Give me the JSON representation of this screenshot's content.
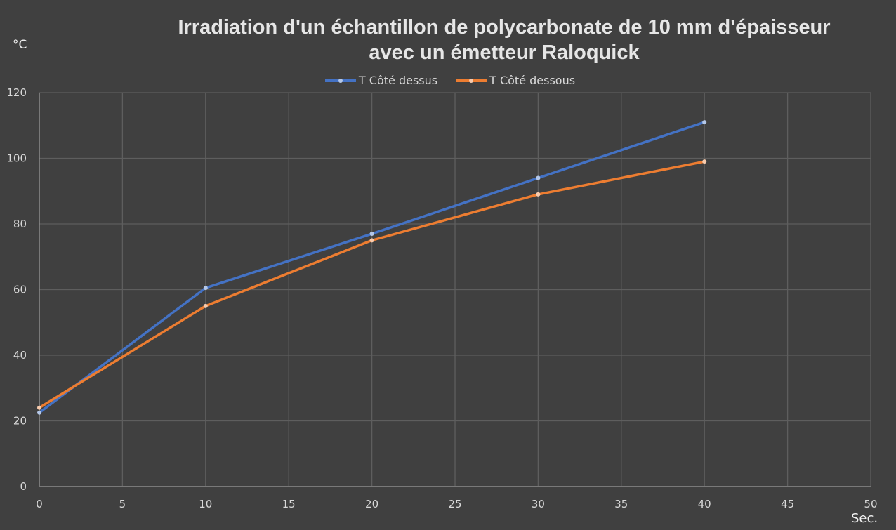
{
  "chart_data": {
    "type": "line",
    "title_lines": [
      "Irradiation d'un échantillon de polycarbonate de 10 mm d'épaisseur",
      "avec un émetteur Raloquick"
    ],
    "ylabel": "°C",
    "xlabel": "Sec.",
    "xlim": [
      0,
      50
    ],
    "ylim": [
      0,
      120
    ],
    "x_ticks": [
      "0",
      "5",
      "10",
      "15",
      "20",
      "25",
      "30",
      "35",
      "40",
      "45",
      "50"
    ],
    "y_ticks": [
      "0",
      "20",
      "40",
      "60",
      "80",
      "100",
      "120"
    ],
    "grid": true,
    "legend_position": "top-center",
    "x": [
      0,
      10,
      20,
      30,
      40
    ],
    "series": [
      {
        "name": "T Côté dessus",
        "color": "#4472c4",
        "marker_color": "#b4c7e7",
        "values": [
          22.5,
          60.5,
          77,
          94,
          111
        ]
      },
      {
        "name": "T Côté dessous",
        "color": "#ed7d31",
        "marker_color": "#f8cbad",
        "values": [
          24,
          55,
          75,
          89,
          99
        ]
      }
    ]
  },
  "colors": {
    "background": "#404040",
    "gridline": "#5e5e5e",
    "axis": "#8c8c8c",
    "text": "#d9d9d9"
  }
}
